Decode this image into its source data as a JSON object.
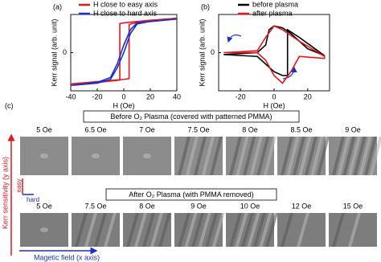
{
  "chart_data": [
    {
      "type": "line",
      "panel": "(a)",
      "xlabel": "H (Oe)",
      "ylabel": "Kerr signal (arb. unit)",
      "xlim": [
        -40,
        40
      ],
      "xticks": [
        -40,
        -20,
        0,
        20,
        40
      ],
      "ylim": [
        -1,
        1
      ],
      "yticks": [
        0
      ],
      "legend": "top",
      "series": [
        {
          "name": "H close to easy axis",
          "color": "#e8161b",
          "x": [
            -40,
            -20,
            0,
            4,
            4,
            10,
            20,
            40,
            20,
            0,
            -3,
            -3,
            -20,
            -40
          ],
          "values": [
            -0.82,
            -0.76,
            -0.7,
            -0.68,
            0.74,
            0.79,
            0.84,
            0.9,
            0.85,
            0.78,
            0.76,
            -0.72,
            -0.78,
            -0.82
          ]
        },
        {
          "name": "H close to hard axis",
          "color": "#1a2fcf",
          "x": [
            -40,
            -20,
            -10,
            -5,
            0,
            5,
            10,
            20,
            40,
            10,
            5,
            0,
            -5,
            -10,
            -20,
            -40
          ],
          "values": [
            -0.86,
            -0.8,
            -0.7,
            -0.4,
            0,
            0.5,
            0.75,
            0.82,
            0.88,
            0.78,
            0.6,
            0.2,
            -0.3,
            -0.65,
            -0.78,
            -0.86
          ]
        }
      ]
    },
    {
      "type": "line",
      "panel": "(b)",
      "xlabel": "H (Oe)",
      "ylabel": "Kerr signal (arb. unit)",
      "xlim": [
        -33,
        33
      ],
      "xticks": [
        -20,
        0,
        20
      ],
      "ylim": [
        -1,
        1
      ],
      "yticks": [
        0
      ],
      "legend": "top",
      "series": [
        {
          "name": "before plasma",
          "color": "#000000",
          "x": [
            -30,
            -10,
            0,
            5,
            8,
            8,
            15,
            30,
            20,
            10,
            5,
            0,
            -3,
            -5,
            -10,
            -30
          ],
          "values": [
            -0.05,
            -0.1,
            -0.5,
            -0.6,
            -0.6,
            0.6,
            0.4,
            -0.08,
            0.1,
            0.5,
            0.65,
            0.7,
            0.6,
            0.2,
            0.0,
            -0.05
          ]
        },
        {
          "name": "after plasma",
          "color": "#e8161b",
          "x": [
            -30,
            -10,
            -5,
            0,
            5,
            15,
            30,
            30,
            15,
            10,
            5,
            0,
            -5,
            -10,
            -30
          ],
          "values": [
            0.0,
            0.05,
            0.4,
            0.7,
            0.6,
            0.3,
            -0.1,
            -0.15,
            -0.1,
            -0.5,
            -0.8,
            -0.6,
            -0.2,
            0.0,
            0.0
          ]
        }
      ]
    }
  ],
  "panel_c": {
    "label": "(c)",
    "before": {
      "title": "Before O₂ Plasma (covered with patterned PMMA)",
      "fields": [
        "5 Oe",
        "6.5 Oe",
        "7 Oe",
        "7.5 Oe",
        "8 Oe",
        "8.5 Oe",
        "9 Oe"
      ]
    },
    "after": {
      "title": "After O₂ Plasma (with PMMA removed)",
      "fields": [
        "5 Oe",
        "7.5 Oe",
        "8 Oe",
        "9 Oe",
        "10 Oe",
        "12 Oe",
        "15 Oe"
      ]
    },
    "easy": "easy",
    "hard": "hard",
    "y_arrow": "Kerr sensitivity (y axis)",
    "x_arrow": "Magetic field (x axis)"
  }
}
